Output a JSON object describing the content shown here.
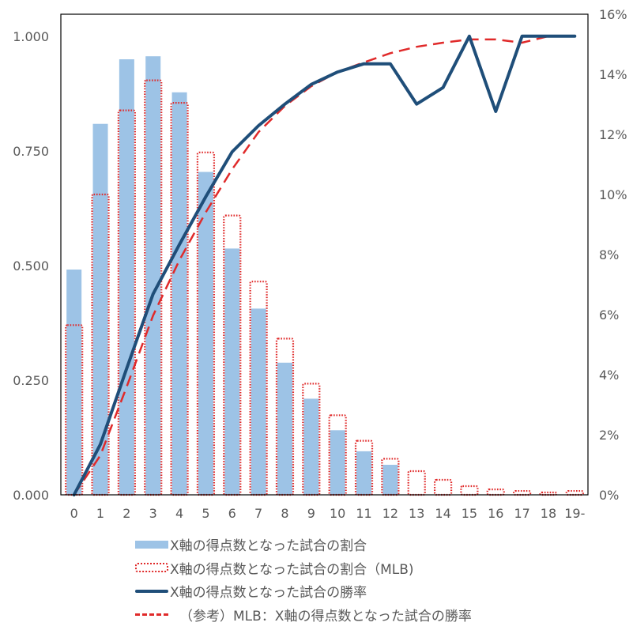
{
  "chart_data": {
    "type": "bar",
    "combo": "bar+line (dual axis)",
    "title": "",
    "xlabel": "",
    "ylabel_left": "",
    "ylabel_right": "",
    "categories": [
      "0",
      "1",
      "2",
      "3",
      "4",
      "5",
      "6",
      "7",
      "8",
      "9",
      "10",
      "11",
      "12",
      "13",
      "14",
      "15",
      "16",
      "17",
      "18",
      "19-"
    ],
    "left_axis": {
      "ticks": [
        "0.000",
        "0.250",
        "0.500",
        "0.750",
        "1.000"
      ],
      "range": [
        0,
        1.048
      ]
    },
    "right_axis": {
      "ticks": [
        "0%",
        "2%",
        "4%",
        "6%",
        "8%",
        "10%",
        "12%",
        "14%",
        "16%"
      ],
      "range": [
        0,
        16
      ]
    },
    "grid": false,
    "legend_position": "bottom",
    "series": [
      {
        "name": "X軸の得点数となった試合の割合",
        "type": "bar",
        "axis": "right",
        "unit": "%",
        "color": "#9DC3E6",
        "values": [
          7.5,
          12.35,
          14.5,
          14.6,
          13.4,
          10.75,
          8.2,
          6.2,
          4.4,
          3.2,
          2.15,
          1.45,
          1.0,
          0,
          0,
          0,
          0,
          0,
          0,
          0
        ]
      },
      {
        "name": "X軸の得点数となった試合の割合（MLB)",
        "type": "bar",
        "style": "dotted-outline",
        "axis": "right",
        "unit": "%",
        "color": "#E02A2A",
        "values": [
          5.65,
          10.0,
          12.8,
          13.8,
          13.05,
          11.4,
          9.3,
          7.1,
          5.2,
          3.7,
          2.65,
          1.8,
          1.2,
          0.79,
          0.5,
          0.29,
          0.18,
          0.13,
          0.08,
          0.13
        ]
      },
      {
        "name": "X軸の得点数となった試合の勝率",
        "type": "line",
        "axis": "left",
        "color": "#1F4E79",
        "values": [
          0.0,
          0.11,
          0.276,
          0.438,
          0.546,
          0.65,
          0.748,
          0.805,
          0.852,
          0.895,
          0.922,
          0.94,
          0.94,
          0.852,
          0.888,
          1.0,
          0.836,
          1.0,
          1.0,
          1.0
        ]
      },
      {
        "name": "（参考）MLB：X軸の得点数となった試合の勝率",
        "type": "line",
        "style": "dashed",
        "axis": "left",
        "color": "#E02A2A",
        "values": [
          0.0,
          0.086,
          0.236,
          0.391,
          0.512,
          0.616,
          0.71,
          0.791,
          0.848,
          0.891,
          0.922,
          0.943,
          0.963,
          0.977,
          0.986,
          0.993,
          0.993,
          0.986,
          1.0,
          1.0
        ]
      }
    ]
  },
  "legend": {
    "items": [
      {
        "label": "X軸の得点数となった試合の割合",
        "icon": "light-blue-bar-swatch"
      },
      {
        "label": "X軸の得点数となった試合の割合（MLB)",
        "icon": "red-dotted-bar-swatch"
      },
      {
        "label": "X軸の得点数となった試合の勝率",
        "icon": "navy-solid-line-swatch"
      },
      {
        "label": "（参考）MLB：X軸の得点数となった試合の勝率",
        "icon": "red-dashed-line-swatch"
      }
    ]
  },
  "colors": {
    "bar": "#9DC3E6",
    "mlb_bar_outline": "#E02A2A",
    "win_line": "#1F4E79",
    "mlb_win_line": "#E02A2A",
    "axis": "#000000",
    "text": "#595959"
  }
}
